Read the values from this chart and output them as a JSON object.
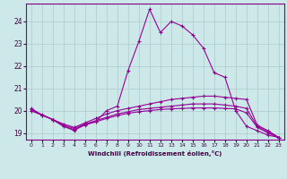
{
  "title": "",
  "xlabel": "Windchill (Refroidissement éolien,°C)",
  "background_color": "#cce8e8",
  "grid_color": "#aacccc",
  "line_color": "#990099",
  "xlim": [
    -0.5,
    23.5
  ],
  "ylim": [
    18.7,
    24.8
  ],
  "yticks": [
    19,
    20,
    21,
    22,
    23,
    24
  ],
  "xticks": [
    0,
    1,
    2,
    3,
    4,
    5,
    6,
    7,
    8,
    9,
    10,
    11,
    12,
    13,
    14,
    15,
    16,
    17,
    18,
    19,
    20,
    21,
    22,
    23
  ],
  "lines": [
    {
      "x": [
        0,
        1,
        2,
        3,
        4,
        5,
        6,
        7,
        8,
        9,
        10,
        11,
        12,
        13,
        14,
        15,
        16,
        17,
        18,
        19,
        20,
        21,
        22,
        23
      ],
      "y": [
        20.1,
        19.8,
        19.6,
        19.3,
        19.1,
        19.4,
        19.5,
        20.0,
        20.2,
        21.8,
        23.1,
        24.55,
        23.5,
        24.0,
        23.8,
        23.4,
        22.8,
        21.7,
        21.5,
        20.0,
        19.3,
        19.1,
        18.9,
        18.8
      ]
    },
    {
      "x": [
        0,
        1,
        2,
        3,
        4,
        5,
        6,
        7,
        8,
        9,
        10,
        11,
        12,
        13,
        14,
        15,
        16,
        17,
        18,
        19,
        20,
        21,
        22,
        23
      ],
      "y": [
        20.05,
        19.82,
        19.6,
        19.4,
        19.25,
        19.45,
        19.65,
        19.85,
        20.0,
        20.1,
        20.2,
        20.3,
        20.4,
        20.5,
        20.55,
        20.6,
        20.65,
        20.65,
        20.6,
        20.55,
        20.5,
        19.35,
        19.1,
        18.8
      ]
    },
    {
      "x": [
        0,
        1,
        2,
        3,
        4,
        5,
        6,
        7,
        8,
        9,
        10,
        11,
        12,
        13,
        14,
        15,
        16,
        17,
        18,
        19,
        20,
        21,
        22,
        23
      ],
      "y": [
        20.0,
        19.8,
        19.6,
        19.35,
        19.2,
        19.4,
        19.55,
        19.7,
        19.85,
        19.95,
        20.05,
        20.1,
        20.15,
        20.2,
        20.25,
        20.3,
        20.3,
        20.3,
        20.25,
        20.2,
        20.1,
        19.3,
        19.05,
        18.8
      ]
    },
    {
      "x": [
        0,
        1,
        2,
        3,
        4,
        5,
        6,
        7,
        8,
        9,
        10,
        11,
        12,
        13,
        14,
        15,
        16,
        17,
        18,
        19,
        20,
        21,
        22,
        23
      ],
      "y": [
        20.0,
        19.8,
        19.6,
        19.3,
        19.15,
        19.35,
        19.5,
        19.65,
        19.78,
        19.88,
        19.95,
        20.0,
        20.05,
        20.08,
        20.1,
        20.12,
        20.12,
        20.12,
        20.1,
        20.08,
        19.9,
        19.25,
        19.0,
        18.78
      ]
    }
  ]
}
